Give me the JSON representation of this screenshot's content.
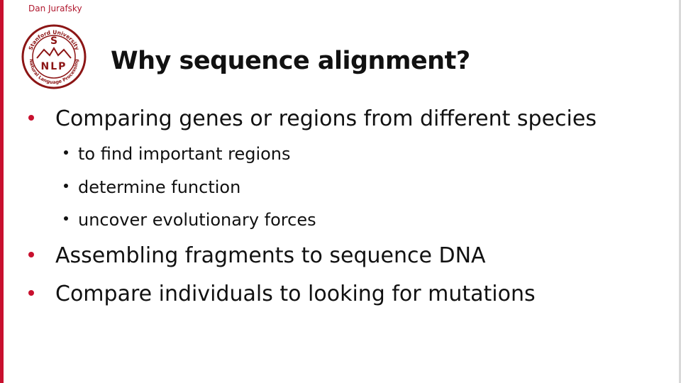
{
  "header": {
    "author": "Dan Jurafsky",
    "title": "Why sequence alignment?"
  },
  "logo": {
    "arc_text": "Stanford University",
    "letters": "S NLP",
    "bottom_text": "Natural Language Processing",
    "color": "#8c1515"
  },
  "theme": {
    "accent": "#c8102e",
    "text": "#111111"
  },
  "bullets": [
    {
      "text": "Comparing genes or regions from different species",
      "children": [
        "to find important regions",
        "determine function",
        "uncover evolutionary forces"
      ]
    },
    {
      "text": "Assembling fragments to sequence DNA",
      "children": []
    },
    {
      "text": "Compare individuals to looking for mutations",
      "children": []
    }
  ]
}
